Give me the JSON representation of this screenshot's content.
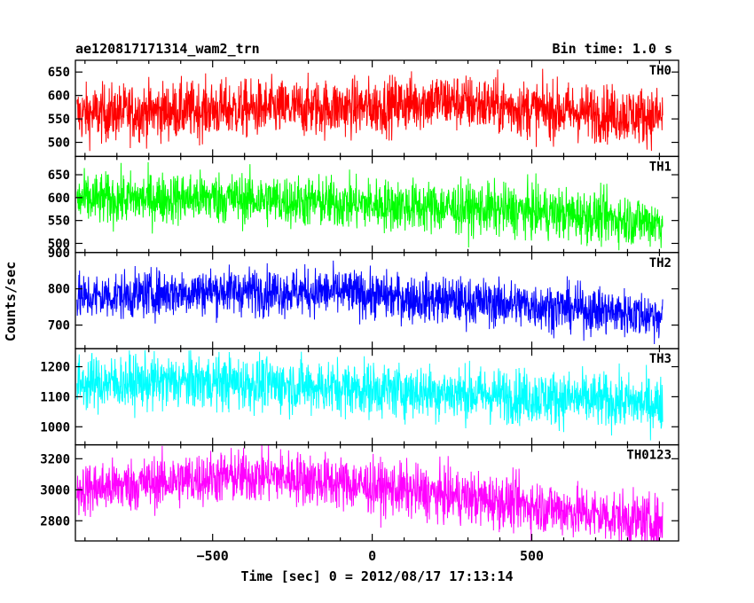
{
  "header": {
    "title": "ae120817171314_wam2_trn",
    "bin_time": "Bin time: 1.0 s"
  },
  "chart_data": {
    "type": "line",
    "xlabel": "Time [sec] 0 = 2012/08/17 17:13:14",
    "ylabel": "Counts/sec",
    "xlim": [
      -930,
      960
    ],
    "x_ticks": [
      {
        "value": -500,
        "label": "−500"
      },
      {
        "value": 0,
        "label": "0"
      },
      {
        "value": 500,
        "label": "500"
      }
    ],
    "x_range": [
      -925,
      910
    ],
    "panels": [
      {
        "name": "TH0",
        "color": "#ff0000",
        "ylim": [
          470,
          675
        ],
        "ticks": [
          {
            "value": 500,
            "label": "500"
          },
          {
            "value": 550,
            "label": "550"
          },
          {
            "value": 600,
            "label": "600"
          },
          {
            "value": 650,
            "label": "650"
          }
        ],
        "trend": [
          [
            -925,
            560
          ],
          [
            -500,
            570
          ],
          [
            0,
            575
          ],
          [
            200,
            590
          ],
          [
            500,
            570
          ],
          [
            910,
            555
          ]
        ],
        "noise": 30,
        "range_min": 475,
        "range_max": 675
      },
      {
        "name": "TH1",
        "color": "#00ff00",
        "ylim": [
          480,
          690
        ],
        "ticks": [
          {
            "value": 500,
            "label": "500"
          },
          {
            "value": 550,
            "label": "550"
          },
          {
            "value": 600,
            "label": "600"
          },
          {
            "value": 650,
            "label": "650"
          }
        ],
        "trend": [
          [
            -925,
            595
          ],
          [
            -500,
            600
          ],
          [
            0,
            585
          ],
          [
            500,
            570
          ],
          [
            910,
            545
          ]
        ],
        "noise": 28,
        "range_min": 485,
        "range_max": 680
      },
      {
        "name": "TH2",
        "color": "#0000ff",
        "ylim": [
          635,
          900
        ],
        "ticks": [
          {
            "value": 700,
            "label": "700"
          },
          {
            "value": 800,
            "label": "800"
          },
          {
            "value": 900,
            "label": "900"
          }
        ],
        "trend": [
          [
            -925,
            775
          ],
          [
            -500,
            795
          ],
          [
            -100,
            790
          ],
          [
            100,
            775
          ],
          [
            500,
            755
          ],
          [
            910,
            725
          ]
        ],
        "noise": 32,
        "range_min": 640,
        "range_max": 900
      },
      {
        "name": "TH3",
        "color": "#00ffff",
        "ylim": [
          940,
          1260
        ],
        "ticks": [
          {
            "value": 1000,
            "label": "1000"
          },
          {
            "value": 1100,
            "label": "1100"
          },
          {
            "value": 1200,
            "label": "1200"
          }
        ],
        "trend": [
          [
            -925,
            1145
          ],
          [
            -500,
            1150
          ],
          [
            0,
            1125
          ],
          [
            500,
            1100
          ],
          [
            910,
            1075
          ]
        ],
        "noise": 45,
        "range_min": 945,
        "range_max": 1255
      },
      {
        "name": "TH0123",
        "color": "#ff00ff",
        "ylim": [
          2670,
          3290
        ],
        "ticks": [
          {
            "value": 2800,
            "label": "2800"
          },
          {
            "value": 3000,
            "label": "3000"
          },
          {
            "value": 3200,
            "label": "3200"
          }
        ],
        "trend": [
          [
            -925,
            3000
          ],
          [
            -500,
            3080
          ],
          [
            -300,
            3090
          ],
          [
            0,
            3020
          ],
          [
            500,
            2900
          ],
          [
            910,
            2780
          ]
        ],
        "noise": 85,
        "range_min": 2670,
        "range_max": 3290
      }
    ]
  }
}
